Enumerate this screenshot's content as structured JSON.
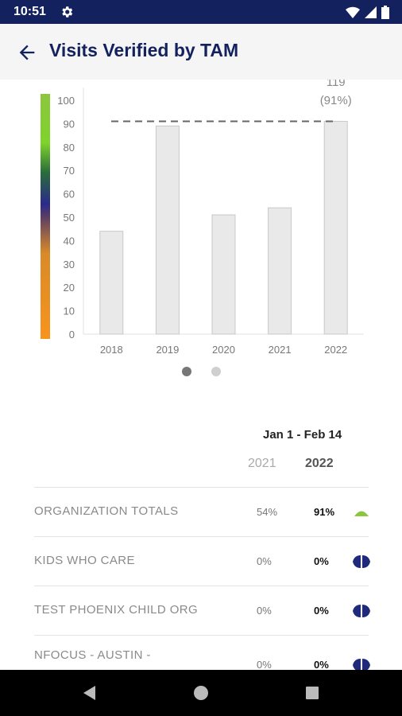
{
  "status": {
    "time": "10:51",
    "icons": [
      "gear-icon",
      "wifi-icon",
      "signal-icon",
      "battery-icon"
    ]
  },
  "header": {
    "title": "Visits Verified by TAM",
    "back_icon": "arrow-left-icon"
  },
  "chart_data": {
    "type": "bar",
    "categories": [
      "2018",
      "2019",
      "2020",
      "2021",
      "2022"
    ],
    "values": [
      44,
      89,
      51,
      54,
      91
    ],
    "ylim": [
      0,
      100
    ],
    "yticks": [
      0,
      10,
      20,
      30,
      40,
      50,
      60,
      70,
      80,
      90,
      100
    ],
    "target": 91,
    "last_label_top": "119",
    "last_label": "(91%)",
    "bar_color": "#e9e9e9",
    "gradient_colors": [
      "#f7941d",
      "#5a3d66",
      "#2b2a8c",
      "#2a6d3a",
      "#7fd32b",
      "#8cc63f"
    ]
  },
  "pager": {
    "dots": 2,
    "active": 0
  },
  "summary": {
    "period": "Jan 1 - Feb 14",
    "year_prev": "2021",
    "year_cur": "2022",
    "rows": [
      {
        "label": "ORGANIZATION TOTALS",
        "prev": "54%",
        "cur": "91%",
        "icon": "triangle-up-icon",
        "icon_color": "#8cc63f"
      },
      {
        "label": "KIDS WHO CARE",
        "prev": "0%",
        "cur": "0%",
        "icon": "diamond-icon",
        "icon_color": "#1f2a7a"
      },
      {
        "label": "TEST PHOENIX CHILD ORG",
        "prev": "0%",
        "cur": "0%",
        "icon": "diamond-icon",
        "icon_color": "#1f2a7a"
      },
      {
        "label": "NFOCUS - AUSTIN -",
        "prev": "0%",
        "cur": "0%",
        "icon": "diamond-icon",
        "icon_color": "#1f2a7a"
      }
    ]
  },
  "nav": {
    "icons": [
      "back-triangle-icon",
      "home-circle-icon",
      "recents-square-icon"
    ]
  }
}
